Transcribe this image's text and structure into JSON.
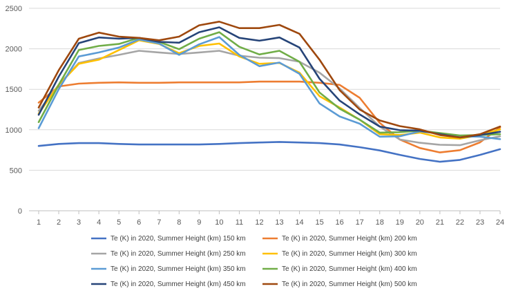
{
  "chart_data": {
    "type": "line",
    "title": "",
    "xlabel": "",
    "ylabel": "",
    "x": [
      1,
      2,
      3,
      4,
      5,
      6,
      7,
      8,
      9,
      10,
      11,
      12,
      13,
      14,
      15,
      16,
      17,
      18,
      19,
      20,
      21,
      22,
      23,
      24
    ],
    "x_tick_labels": [
      "1",
      "2",
      "3",
      "4",
      "5",
      "6",
      "7",
      "8",
      "9",
      "10",
      "11",
      "12",
      "13",
      "14",
      "15",
      "16",
      "17",
      "18",
      "19",
      "20",
      "21",
      "22",
      "23",
      "24"
    ],
    "ylim": [
      0,
      2500
    ],
    "y_ticks": [
      0,
      500,
      1000,
      1500,
      2000,
      2500
    ],
    "y_tick_labels": [
      "0",
      "500",
      "1000",
      "1500",
      "2000",
      "2500"
    ],
    "grid": "horizontal",
    "legend_position": "bottom",
    "series": [
      {
        "name": "Te  (K) in 2020, Summer Height (km) 150 km",
        "color": "#4472C4",
        "values": [
          800,
          825,
          835,
          835,
          825,
          818,
          818,
          818,
          818,
          825,
          835,
          843,
          850,
          843,
          835,
          818,
          785,
          745,
          690,
          640,
          605,
          628,
          690,
          760
        ]
      },
      {
        "name": "Te  (K) in 2020, Summer Height (km) 200 km",
        "color": "#ED7D31",
        "values": [
          1335,
          1535,
          1570,
          1580,
          1585,
          1580,
          1580,
          1585,
          1585,
          1585,
          1585,
          1595,
          1595,
          1595,
          1580,
          1555,
          1395,
          1085,
          880,
          775,
          720,
          748,
          845,
          1030
        ]
      },
      {
        "name": "Te  (K) in 2020, Summer Height (km) 250 km",
        "color": "#A5A5A5",
        "values": [
          1235,
          1555,
          1825,
          1880,
          1925,
          1975,
          1955,
          1935,
          1955,
          1975,
          1915,
          1890,
          1885,
          1840,
          1705,
          1510,
          1270,
          1040,
          880,
          840,
          815,
          810,
          870,
          920
        ]
      },
      {
        "name": "Te  (K) in 2020, Summer Height (km) 300 km",
        "color": "#FFC000",
        "values": [
          1200,
          1555,
          1815,
          1865,
          1985,
          2105,
          2060,
          1945,
          2035,
          2065,
          1905,
          1815,
          1825,
          1705,
          1415,
          1275,
          1125,
          945,
          935,
          965,
          905,
          890,
          935,
          1005
        ]
      },
      {
        "name": "Te  (K) in 2020, Summer Height (km) 350 km",
        "color": "#5B9BD5",
        "values": [
          1020,
          1500,
          1905,
          1955,
          2015,
          2115,
          2065,
          1925,
          2055,
          2145,
          1925,
          1785,
          1830,
          1690,
          1325,
          1165,
          1075,
          915,
          920,
          980,
          955,
          920,
          915,
          885
        ]
      },
      {
        "name": "Te  (K) in 2020, Summer Height (km) 400 km",
        "color": "#70AD47",
        "values": [
          1095,
          1555,
          1985,
          2035,
          2060,
          2135,
          2085,
          1995,
          2125,
          2205,
          2025,
          1930,
          1975,
          1840,
          1460,
          1260,
          1125,
          965,
          970,
          990,
          960,
          930,
          935,
          945
        ]
      },
      {
        "name": "Te  (K) in 2020, Summer Height (km) 450 km",
        "color": "#264478",
        "values": [
          1185,
          1655,
          2070,
          2140,
          2125,
          2135,
          2085,
          2075,
          2205,
          2265,
          2135,
          2100,
          2140,
          2015,
          1630,
          1360,
          1190,
          1040,
          995,
          990,
          945,
          905,
          935,
          975
        ]
      },
      {
        "name": "Te  (K) in 2020, Summer Height (km) 500 km",
        "color": "#9E480E",
        "values": [
          1275,
          1735,
          2125,
          2200,
          2150,
          2135,
          2105,
          2150,
          2290,
          2335,
          2255,
          2255,
          2295,
          2185,
          1865,
          1490,
          1250,
          1115,
          1045,
          1005,
          935,
          905,
          945,
          1040
        ]
      }
    ]
  }
}
